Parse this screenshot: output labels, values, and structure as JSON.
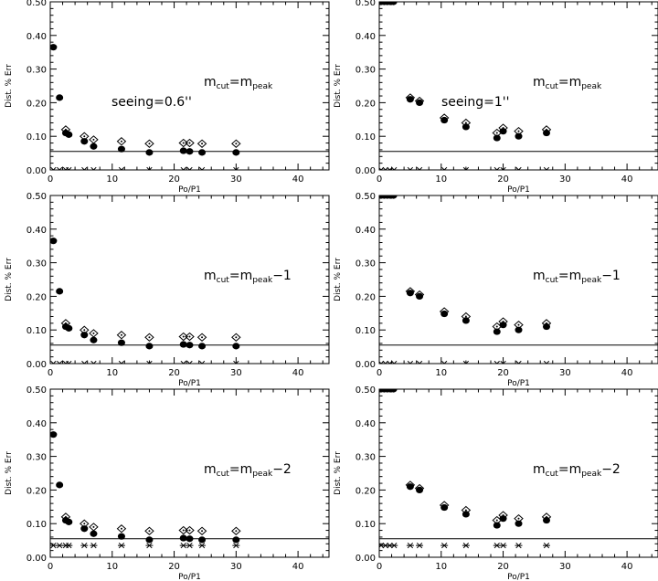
{
  "chart_data": [
    {
      "type": "scatter",
      "xlabel": "Po/P1",
      "ylabel": "Dist. % Err",
      "xlim": [
        0,
        45
      ],
      "ylim": [
        0,
        0.5
      ],
      "xticks": [
        "0",
        "10",
        "20",
        "30",
        "40"
      ],
      "yticks": [
        "0.00",
        "0.10",
        "0.20",
        "0.30",
        "0.40",
        "0.50"
      ],
      "annotation": {
        "m": "m",
        "cut": "cut",
        "eq": "=",
        "peak": "peak",
        "suffix": ""
      },
      "seeing": "seeing=0.6''",
      "reference_line": 0.055,
      "series": [
        {
          "marker": "open-diamond",
          "points": [
            [
              2.5,
              0.12
            ],
            [
              5.5,
              0.1
            ],
            [
              7,
              0.09
            ],
            [
              11.5,
              0.085
            ],
            [
              16,
              0.078
            ],
            [
              21.5,
              0.08
            ],
            [
              22.5,
              0.08
            ],
            [
              24.5,
              0.078
            ],
            [
              30,
              0.078
            ]
          ]
        },
        {
          "marker": "filled-circle",
          "points": [
            [
              0.5,
              0.365
            ],
            [
              1.5,
              0.215
            ],
            [
              2.5,
              0.11
            ],
            [
              3,
              0.105
            ],
            [
              5.5,
              0.085
            ],
            [
              7,
              0.07
            ],
            [
              11.5,
              0.062
            ],
            [
              16,
              0.052
            ],
            [
              21.5,
              0.057
            ],
            [
              22.5,
              0.055
            ],
            [
              24.5,
              0.052
            ],
            [
              30,
              0.052
            ]
          ]
        },
        {
          "marker": "asterisk",
          "points": [
            [
              0.5,
              0.0
            ],
            [
              1.5,
              0.0
            ],
            [
              2.5,
              0.0
            ],
            [
              3,
              0.0
            ],
            [
              5.5,
              0.0
            ],
            [
              7,
              0.0
            ],
            [
              11.5,
              0.0
            ],
            [
              16,
              0.0
            ],
            [
              21.5,
              0.0
            ],
            [
              22.5,
              0.0
            ],
            [
              24.5,
              0.0
            ],
            [
              30,
              0.0
            ]
          ]
        }
      ]
    },
    {
      "type": "scatter",
      "xlabel": "Po/P1",
      "ylabel": "Dist. % Err",
      "xlim": [
        0,
        45
      ],
      "ylim": [
        0,
        0.5
      ],
      "xticks": [
        "0",
        "10",
        "20",
        "30",
        "40"
      ],
      "yticks": [
        "0.00",
        "0.10",
        "0.20",
        "0.30",
        "0.40",
        "0.50"
      ],
      "annotation": {
        "m": "m",
        "cut": "cut",
        "eq": "=",
        "peak": "peak",
        "suffix": ""
      },
      "seeing": "seeing=1''",
      "reference_line": 0.055,
      "series": [
        {
          "marker": "open-diamond",
          "points": [
            [
              5,
              0.215
            ],
            [
              6.5,
              0.205
            ],
            [
              10.5,
              0.155
            ],
            [
              14,
              0.14
            ],
            [
              19,
              0.11
            ],
            [
              20,
              0.125
            ],
            [
              22.5,
              0.115
            ],
            [
              27,
              0.12
            ]
          ]
        },
        {
          "marker": "filled-circle",
          "points": [
            [
              0.3,
              0.5
            ],
            [
              0.8,
              0.5
            ],
            [
              1.3,
              0.5
            ],
            [
              1.8,
              0.5
            ],
            [
              2.3,
              0.5
            ],
            [
              5,
              0.21
            ],
            [
              6.5,
              0.2
            ],
            [
              10.5,
              0.148
            ],
            [
              14,
              0.128
            ],
            [
              19,
              0.095
            ],
            [
              20,
              0.115
            ],
            [
              22.5,
              0.1
            ],
            [
              27,
              0.11
            ]
          ]
        },
        {
          "marker": "asterisk",
          "points": [
            [
              0.3,
              0.0
            ],
            [
              1,
              0.0
            ],
            [
              1.7,
              0.0
            ],
            [
              2.4,
              0.0
            ],
            [
              5,
              0.0
            ],
            [
              6.5,
              0.0
            ],
            [
              10.5,
              0.0
            ],
            [
              14,
              0.0
            ],
            [
              19,
              0.0
            ],
            [
              20,
              0.0
            ],
            [
              22.5,
              0.0
            ],
            [
              27,
              0.0
            ]
          ]
        }
      ]
    },
    {
      "type": "scatter",
      "xlabel": "Po/P1",
      "ylabel": "Dist. % Err",
      "xlim": [
        0,
        45
      ],
      "ylim": [
        0,
        0.5
      ],
      "xticks": [
        "0",
        "10",
        "20",
        "30",
        "40"
      ],
      "yticks": [
        "0.00",
        "0.10",
        "0.20",
        "0.30",
        "0.40",
        "0.50"
      ],
      "annotation": {
        "m": "m",
        "cut": "cut",
        "eq": "=",
        "peak": "peak",
        "suffix": "−1"
      },
      "seeing": "",
      "reference_line": 0.055,
      "series": [
        {
          "marker": "open-diamond",
          "points": [
            [
              2.5,
              0.12
            ],
            [
              5.5,
              0.1
            ],
            [
              7,
              0.09
            ],
            [
              11.5,
              0.085
            ],
            [
              16,
              0.078
            ],
            [
              21.5,
              0.08
            ],
            [
              22.5,
              0.08
            ],
            [
              24.5,
              0.078
            ],
            [
              30,
              0.078
            ]
          ]
        },
        {
          "marker": "filled-circle",
          "points": [
            [
              0.5,
              0.365
            ],
            [
              1.5,
              0.215
            ],
            [
              2.5,
              0.11
            ],
            [
              3,
              0.105
            ],
            [
              5.5,
              0.085
            ],
            [
              7,
              0.07
            ],
            [
              11.5,
              0.062
            ],
            [
              16,
              0.052
            ],
            [
              21.5,
              0.057
            ],
            [
              22.5,
              0.055
            ],
            [
              24.5,
              0.052
            ],
            [
              30,
              0.052
            ]
          ]
        },
        {
          "marker": "asterisk",
          "points": [
            [
              0.5,
              0.0
            ],
            [
              1.5,
              0.0
            ],
            [
              2.5,
              0.0
            ],
            [
              3,
              0.0
            ],
            [
              5.5,
              0.0
            ],
            [
              7,
              0.0
            ],
            [
              11.5,
              0.0
            ],
            [
              16,
              0.0
            ],
            [
              21.5,
              0.0
            ],
            [
              22.5,
              0.0
            ],
            [
              24.5,
              0.0
            ],
            [
              30,
              0.0
            ]
          ]
        }
      ]
    },
    {
      "type": "scatter",
      "xlabel": "Po/P1",
      "ylabel": "Dist. % Err",
      "xlim": [
        0,
        45
      ],
      "ylim": [
        0,
        0.5
      ],
      "xticks": [
        "0",
        "10",
        "20",
        "30",
        "40"
      ],
      "yticks": [
        "0.00",
        "0.10",
        "0.20",
        "0.30",
        "0.40",
        "0.50"
      ],
      "annotation": {
        "m": "m",
        "cut": "cut",
        "eq": "=",
        "peak": "peak",
        "suffix": "−1"
      },
      "seeing": "",
      "reference_line": 0.055,
      "series": [
        {
          "marker": "open-diamond",
          "points": [
            [
              5,
              0.215
            ],
            [
              6.5,
              0.205
            ],
            [
              10.5,
              0.155
            ],
            [
              14,
              0.14
            ],
            [
              19,
              0.11
            ],
            [
              20,
              0.125
            ],
            [
              22.5,
              0.115
            ],
            [
              27,
              0.12
            ]
          ]
        },
        {
          "marker": "filled-circle",
          "points": [
            [
              0.3,
              0.5
            ],
            [
              0.8,
              0.5
            ],
            [
              1.3,
              0.5
            ],
            [
              1.8,
              0.5
            ],
            [
              2.3,
              0.5
            ],
            [
              5,
              0.21
            ],
            [
              6.5,
              0.2
            ],
            [
              10.5,
              0.148
            ],
            [
              14,
              0.128
            ],
            [
              19,
              0.095
            ],
            [
              20,
              0.115
            ],
            [
              22.5,
              0.1
            ],
            [
              27,
              0.11
            ]
          ]
        },
        {
          "marker": "asterisk",
          "points": [
            [
              0.3,
              0.0
            ],
            [
              1,
              0.0
            ],
            [
              1.7,
              0.0
            ],
            [
              2.4,
              0.0
            ],
            [
              5,
              0.0
            ],
            [
              6.5,
              0.0
            ],
            [
              10.5,
              0.0
            ],
            [
              14,
              0.0
            ],
            [
              19,
              0.0
            ],
            [
              20,
              0.0
            ],
            [
              22.5,
              0.0
            ],
            [
              27,
              0.0
            ]
          ]
        }
      ]
    },
    {
      "type": "scatter",
      "xlabel": "Po/P1",
      "ylabel": "Dist. % Err",
      "xlim": [
        0,
        45
      ],
      "ylim": [
        0,
        0.5
      ],
      "xticks": [
        "0",
        "10",
        "20",
        "30",
        "40"
      ],
      "yticks": [
        "0.00",
        "0.10",
        "0.20",
        "0.30",
        "0.40",
        "0.50"
      ],
      "annotation": {
        "m": "m",
        "cut": "cut",
        "eq": "=",
        "peak": "peak",
        "suffix": "−2"
      },
      "seeing": "",
      "reference_line": 0.055,
      "series": [
        {
          "marker": "open-diamond",
          "points": [
            [
              2.5,
              0.12
            ],
            [
              5.5,
              0.1
            ],
            [
              7,
              0.09
            ],
            [
              11.5,
              0.085
            ],
            [
              16,
              0.078
            ],
            [
              21.5,
              0.08
            ],
            [
              22.5,
              0.08
            ],
            [
              24.5,
              0.078
            ],
            [
              30,
              0.078
            ]
          ]
        },
        {
          "marker": "filled-circle",
          "points": [
            [
              0.5,
              0.365
            ],
            [
              1.5,
              0.215
            ],
            [
              2.5,
              0.11
            ],
            [
              3,
              0.105
            ],
            [
              5.5,
              0.085
            ],
            [
              7,
              0.07
            ],
            [
              11.5,
              0.062
            ],
            [
              16,
              0.052
            ],
            [
              21.5,
              0.057
            ],
            [
              22.5,
              0.055
            ],
            [
              24.5,
              0.052
            ],
            [
              30,
              0.052
            ]
          ]
        },
        {
          "marker": "asterisk",
          "points": [
            [
              0.5,
              0.035
            ],
            [
              1.5,
              0.035
            ],
            [
              2.5,
              0.035
            ],
            [
              3,
              0.035
            ],
            [
              5.5,
              0.035
            ],
            [
              7,
              0.035
            ],
            [
              11.5,
              0.035
            ],
            [
              16,
              0.035
            ],
            [
              21.5,
              0.035
            ],
            [
              22.5,
              0.035
            ],
            [
              24.5,
              0.035
            ],
            [
              30,
              0.035
            ]
          ]
        }
      ]
    },
    {
      "type": "scatter",
      "xlabel": "Po/P1",
      "ylabel": "Dist. % Err",
      "xlim": [
        0,
        45
      ],
      "ylim": [
        0,
        0.5
      ],
      "xticks": [
        "0",
        "10",
        "20",
        "30",
        "40"
      ],
      "yticks": [
        "0.00",
        "0.10",
        "0.20",
        "0.30",
        "0.40",
        "0.50"
      ],
      "annotation": {
        "m": "m",
        "cut": "cut",
        "eq": "=",
        "peak": "peak",
        "suffix": "−2"
      },
      "seeing": "",
      "reference_line": 0.055,
      "series": [
        {
          "marker": "open-diamond",
          "points": [
            [
              5,
              0.215
            ],
            [
              6.5,
              0.205
            ],
            [
              10.5,
              0.155
            ],
            [
              14,
              0.14
            ],
            [
              19,
              0.11
            ],
            [
              20,
              0.125
            ],
            [
              22.5,
              0.115
            ],
            [
              27,
              0.12
            ]
          ]
        },
        {
          "marker": "filled-circle",
          "points": [
            [
              0.3,
              0.5
            ],
            [
              0.8,
              0.5
            ],
            [
              1.3,
              0.5
            ],
            [
              1.8,
              0.5
            ],
            [
              2.3,
              0.5
            ],
            [
              5,
              0.21
            ],
            [
              6.5,
              0.2
            ],
            [
              10.5,
              0.148
            ],
            [
              14,
              0.128
            ],
            [
              19,
              0.095
            ],
            [
              20,
              0.115
            ],
            [
              22.5,
              0.1
            ],
            [
              27,
              0.11
            ]
          ]
        },
        {
          "marker": "asterisk",
          "points": [
            [
              0.3,
              0.035
            ],
            [
              1,
              0.035
            ],
            [
              1.7,
              0.035
            ],
            [
              2.4,
              0.035
            ],
            [
              5,
              0.035
            ],
            [
              6.5,
              0.035
            ],
            [
              10.5,
              0.035
            ],
            [
              14,
              0.035
            ],
            [
              19,
              0.035
            ],
            [
              20,
              0.035
            ],
            [
              22.5,
              0.035
            ],
            [
              27,
              0.035
            ]
          ]
        }
      ]
    }
  ]
}
